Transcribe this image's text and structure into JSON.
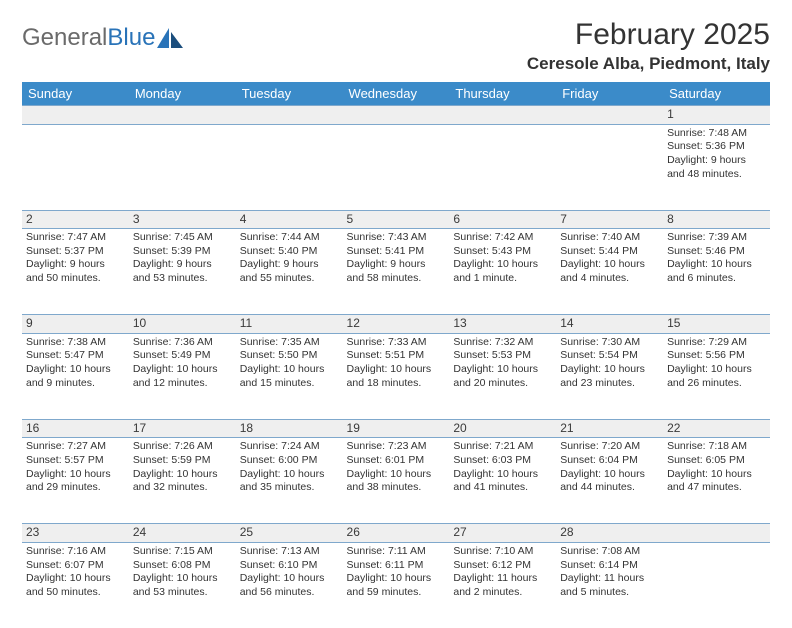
{
  "header": {
    "logo_general": "General",
    "logo_blue": "Blue",
    "month_title": "February 2025",
    "location": "Ceresole Alba, Piedmont, Italy"
  },
  "colors": {
    "header_bar": "#3b8bc9",
    "header_text": "#ffffff",
    "daynum_bg": "#efefef",
    "row_border": "#7fa8cc",
    "text": "#333333",
    "logo_gray": "#6a6a6a",
    "logo_blue": "#2973b8"
  },
  "day_headers": [
    "Sunday",
    "Monday",
    "Tuesday",
    "Wednesday",
    "Thursday",
    "Friday",
    "Saturday"
  ],
  "weeks": [
    {
      "nums": [
        "",
        "",
        "",
        "",
        "",
        "",
        "1"
      ],
      "cells": [
        "",
        "",
        "",
        "",
        "",
        "",
        "Sunrise: 7:48 AM\nSunset: 5:36 PM\nDaylight: 9 hours and 48 minutes."
      ]
    },
    {
      "nums": [
        "2",
        "3",
        "4",
        "5",
        "6",
        "7",
        "8"
      ],
      "cells": [
        "Sunrise: 7:47 AM\nSunset: 5:37 PM\nDaylight: 9 hours and 50 minutes.",
        "Sunrise: 7:45 AM\nSunset: 5:39 PM\nDaylight: 9 hours and 53 minutes.",
        "Sunrise: 7:44 AM\nSunset: 5:40 PM\nDaylight: 9 hours and 55 minutes.",
        "Sunrise: 7:43 AM\nSunset: 5:41 PM\nDaylight: 9 hours and 58 minutes.",
        "Sunrise: 7:42 AM\nSunset: 5:43 PM\nDaylight: 10 hours and 1 minute.",
        "Sunrise: 7:40 AM\nSunset: 5:44 PM\nDaylight: 10 hours and 4 minutes.",
        "Sunrise: 7:39 AM\nSunset: 5:46 PM\nDaylight: 10 hours and 6 minutes."
      ]
    },
    {
      "nums": [
        "9",
        "10",
        "11",
        "12",
        "13",
        "14",
        "15"
      ],
      "cells": [
        "Sunrise: 7:38 AM\nSunset: 5:47 PM\nDaylight: 10 hours and 9 minutes.",
        "Sunrise: 7:36 AM\nSunset: 5:49 PM\nDaylight: 10 hours and 12 minutes.",
        "Sunrise: 7:35 AM\nSunset: 5:50 PM\nDaylight: 10 hours and 15 minutes.",
        "Sunrise: 7:33 AM\nSunset: 5:51 PM\nDaylight: 10 hours and 18 minutes.",
        "Sunrise: 7:32 AM\nSunset: 5:53 PM\nDaylight: 10 hours and 20 minutes.",
        "Sunrise: 7:30 AM\nSunset: 5:54 PM\nDaylight: 10 hours and 23 minutes.",
        "Sunrise: 7:29 AM\nSunset: 5:56 PM\nDaylight: 10 hours and 26 minutes."
      ]
    },
    {
      "nums": [
        "16",
        "17",
        "18",
        "19",
        "20",
        "21",
        "22"
      ],
      "cells": [
        "Sunrise: 7:27 AM\nSunset: 5:57 PM\nDaylight: 10 hours and 29 minutes.",
        "Sunrise: 7:26 AM\nSunset: 5:59 PM\nDaylight: 10 hours and 32 minutes.",
        "Sunrise: 7:24 AM\nSunset: 6:00 PM\nDaylight: 10 hours and 35 minutes.",
        "Sunrise: 7:23 AM\nSunset: 6:01 PM\nDaylight: 10 hours and 38 minutes.",
        "Sunrise: 7:21 AM\nSunset: 6:03 PM\nDaylight: 10 hours and 41 minutes.",
        "Sunrise: 7:20 AM\nSunset: 6:04 PM\nDaylight: 10 hours and 44 minutes.",
        "Sunrise: 7:18 AM\nSunset: 6:05 PM\nDaylight: 10 hours and 47 minutes."
      ]
    },
    {
      "nums": [
        "23",
        "24",
        "25",
        "26",
        "27",
        "28",
        ""
      ],
      "cells": [
        "Sunrise: 7:16 AM\nSunset: 6:07 PM\nDaylight: 10 hours and 50 minutes.",
        "Sunrise: 7:15 AM\nSunset: 6:08 PM\nDaylight: 10 hours and 53 minutes.",
        "Sunrise: 7:13 AM\nSunset: 6:10 PM\nDaylight: 10 hours and 56 minutes.",
        "Sunrise: 7:11 AM\nSunset: 6:11 PM\nDaylight: 10 hours and 59 minutes.",
        "Sunrise: 7:10 AM\nSunset: 6:12 PM\nDaylight: 11 hours and 2 minutes.",
        "Sunrise: 7:08 AM\nSunset: 6:14 PM\nDaylight: 11 hours and 5 minutes.",
        ""
      ]
    }
  ]
}
